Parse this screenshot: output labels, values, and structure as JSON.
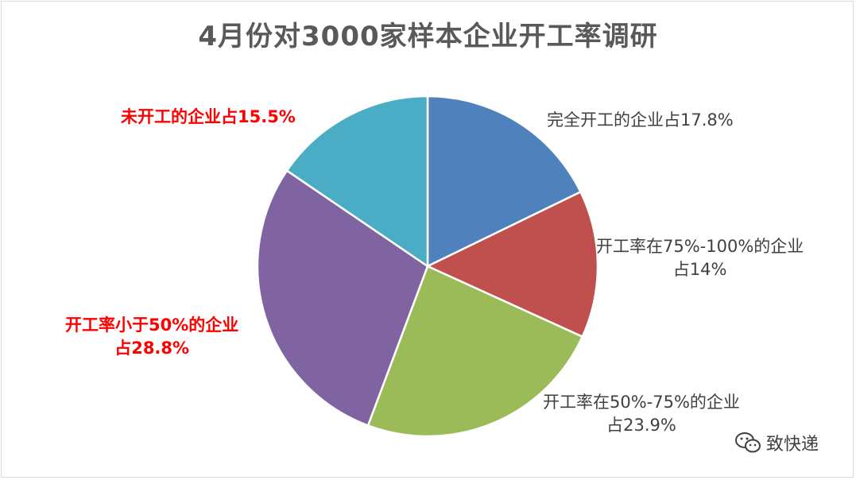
{
  "chart_data": {
    "type": "pie",
    "title": "4月份对3000家样本企业开工率调研",
    "slices": [
      {
        "value": 17.8,
        "color": "#4f81bd",
        "label_lines": [
          "完全开工的企业占17.8%"
        ]
      },
      {
        "value": 14.0,
        "color": "#c0504d",
        "label_lines": [
          "开工率在75%-100%的企业",
          "占14%"
        ]
      },
      {
        "value": 23.9,
        "color": "#9bbb59",
        "label_lines": [
          "开工率在50%-75%的企业",
          "占23.9%"
        ]
      },
      {
        "value": 28.8,
        "color": "#8064a2",
        "label_lines": [
          "开工率小于50%的企业",
          "占28.8%"
        ]
      },
      {
        "value": 15.5,
        "color": "#4bacc6",
        "label_lines": [
          "未开工的企业占15.5%"
        ]
      }
    ],
    "start_angle": "12 o'clock",
    "direction": "clockwise",
    "legend": "none"
  },
  "watermark": {
    "icon": "wechat-icon",
    "text": "致快递"
  }
}
